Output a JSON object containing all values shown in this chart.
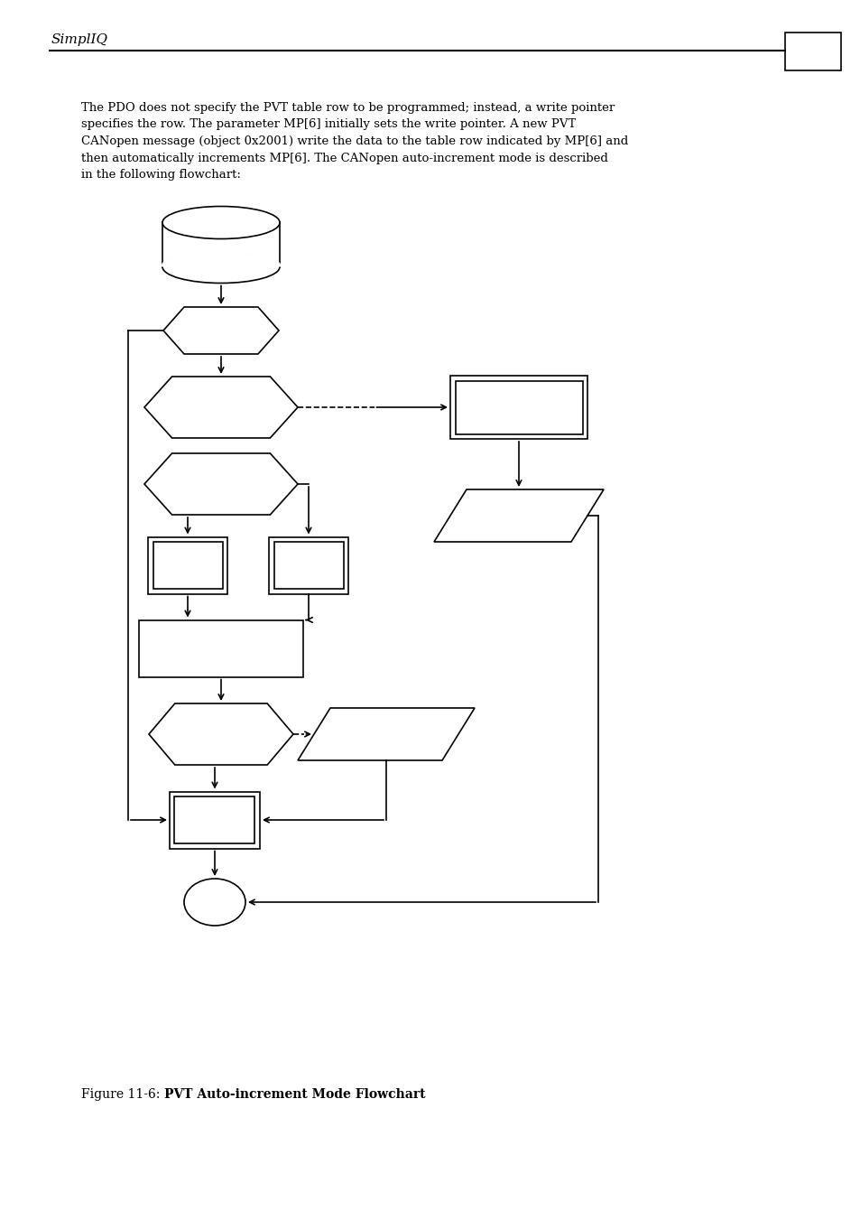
{
  "page_title": "SimplIQ",
  "body_text": "The PDO does not specify the PVT table row to be programmed; instead, a write pointer\nspecifies the row. The parameter MP[6] initially sets the write pointer. A new PVT\nCANopen message (object 0x2001) write the data to the table row indicated by MP[6] and\nthen automatically increments MP[6]. The CANopen auto-increment mode is described\nin the following flowchart:",
  "caption_normal": "Figure 11-6: ",
  "caption_bold": "PVT Auto-increment Mode Flowchart",
  "background_color": "#ffffff",
  "line_color": "#000000",
  "line_width": 1.2
}
